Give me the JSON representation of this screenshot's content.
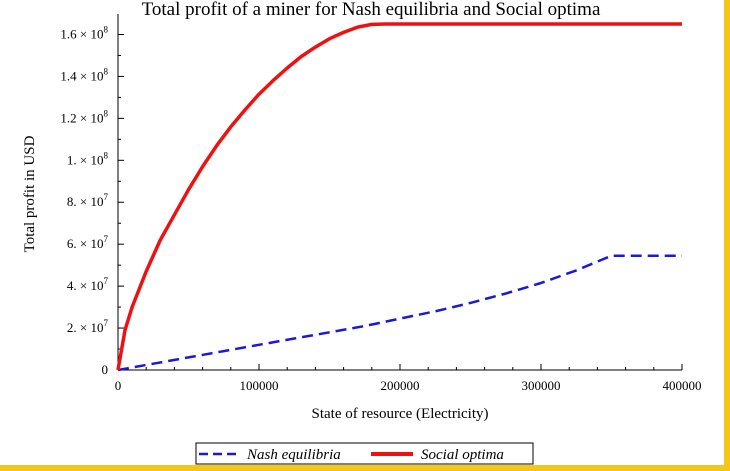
{
  "chart_data": {
    "type": "line",
    "title": "Total profit of a miner for Nash equilibria and Social optima",
    "xlabel": "State of resource (Electricity)",
    "ylabel": "Total profit in USD",
    "xlim": [
      0,
      400000
    ],
    "ylim": [
      0,
      165000000
    ],
    "grid": false,
    "legend_position": "bottom",
    "x_ticks": [
      {
        "value": 0,
        "label": "0"
      },
      {
        "value": 100000,
        "label": "100000"
      },
      {
        "value": 200000,
        "label": "200000"
      },
      {
        "value": 300000,
        "label": "300000"
      },
      {
        "value": 400000,
        "label": "400000"
      }
    ],
    "y_ticks": [
      {
        "value": 0,
        "mant": "0",
        "exp": ""
      },
      {
        "value": 20000000,
        "mant": "2. × 10",
        "exp": "7"
      },
      {
        "value": 40000000,
        "mant": "4. × 10",
        "exp": "7"
      },
      {
        "value": 60000000,
        "mant": "6. × 10",
        "exp": "7"
      },
      {
        "value": 80000000,
        "mant": "8. × 10",
        "exp": "7"
      },
      {
        "value": 100000000,
        "mant": "1. × 10",
        "exp": "8"
      },
      {
        "value": 120000000,
        "mant": "1.2 × 10",
        "exp": "8"
      },
      {
        "value": 140000000,
        "mant": "1.4 × 10",
        "exp": "8"
      },
      {
        "value": 160000000,
        "mant": "1.6 × 10",
        "exp": "8"
      }
    ],
    "series": [
      {
        "name": "Nash equilibria",
        "color": "#1a1ad6",
        "dash": "dashed",
        "x": [
          0,
          25000,
          50000,
          75000,
          100000,
          125000,
          150000,
          175000,
          200000,
          225000,
          250000,
          275000,
          300000,
          325000,
          350000,
          375000,
          400000
        ],
        "y": [
          0,
          3000000,
          6000000,
          9000000,
          12000000,
          15000000,
          18000000,
          21000000,
          24500000,
          28000000,
          32000000,
          36500000,
          41500000,
          47500000,
          54500000,
          54500000,
          54500000
        ]
      },
      {
        "name": "Social optima",
        "color": "#ee1111",
        "dash": "solid",
        "x": [
          0,
          5000,
          10000,
          20000,
          30000,
          40000,
          50000,
          60000,
          70000,
          80000,
          90000,
          100000,
          110000,
          120000,
          130000,
          140000,
          150000,
          160000,
          170000,
          180000,
          190000,
          200000,
          250000,
          300000,
          350000,
          400000
        ],
        "y": [
          0,
          19000000,
          30000000,
          47000000,
          62000000,
          74000000,
          86000000,
          97000000,
          107000000,
          116000000,
          124000000,
          131500000,
          138000000,
          144000000,
          149500000,
          154000000,
          158000000,
          161000000,
          163500000,
          164800000,
          165000000,
          165000000,
          165000000,
          165000000,
          165000000,
          165000000
        ]
      }
    ]
  }
}
